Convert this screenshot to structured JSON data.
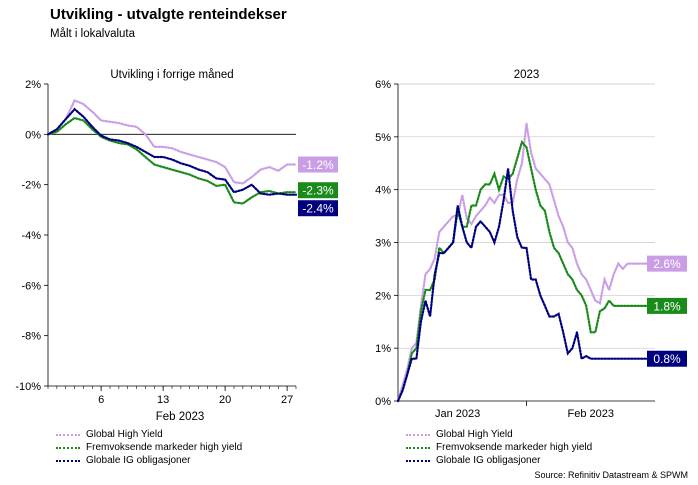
{
  "header": {
    "title": "Utvikling - utvalgte renteindekser",
    "subtitle": "Målt i lokalvaluta",
    "source": "Source: Refinitiv Datastream & SPWM"
  },
  "colors": {
    "global_high_yield": "#c99ee6",
    "emerging_high_yield": "#1a8a1a",
    "global_ig": "#00007f"
  },
  "chart_data": [
    {
      "type": "line",
      "title": "Utvikling i forrige måned",
      "xlabel": "Feb 2023",
      "ylabel": "",
      "x": [
        0,
        1,
        2,
        3,
        4,
        5,
        6,
        7,
        8,
        9,
        10,
        11,
        12,
        13,
        14,
        15,
        16,
        17,
        18,
        19,
        20,
        21,
        22,
        23,
        24,
        25,
        26,
        27,
        28
      ],
      "xlim": [
        0,
        28
      ],
      "xticks": [
        6,
        13,
        20,
        27
      ],
      "xtick_labels": [
        "6",
        "13",
        "20",
        "27"
      ],
      "ylim": [
        -10,
        2
      ],
      "yticks": [
        2,
        0,
        -2,
        -4,
        -6,
        -8,
        -10
      ],
      "ytick_labels": [
        "2%",
        "0%",
        "-2%",
        "-4%",
        "-6%",
        "-8%",
        "-10%"
      ],
      "zero_line": true,
      "series": [
        {
          "name": "Global High Yield",
          "color": "#c99ee6",
          "end_label": "-1.2%",
          "values": [
            0,
            0.2,
            0.6,
            1.35,
            1.2,
            0.9,
            0.55,
            0.5,
            0.45,
            0.35,
            0.3,
            0.0,
            -0.5,
            -0.5,
            -0.55,
            -0.7,
            -0.8,
            -0.9,
            -1.0,
            -1.1,
            -1.3,
            -1.9,
            -1.95,
            -1.7,
            -1.4,
            -1.3,
            -1.45,
            -1.2,
            -1.2
          ]
        },
        {
          "name": "Fremvoksende markeder high yield",
          "color": "#1a8a1a",
          "end_label": "-2.3%",
          "values": [
            0,
            0.1,
            0.4,
            0.65,
            0.55,
            0.2,
            -0.1,
            -0.25,
            -0.35,
            -0.4,
            -0.6,
            -0.9,
            -1.2,
            -1.3,
            -1.4,
            -1.5,
            -1.6,
            -1.75,
            -1.85,
            -2.05,
            -2.0,
            -2.7,
            -2.75,
            -2.5,
            -2.3,
            -2.25,
            -2.35,
            -2.3,
            -2.3
          ]
        },
        {
          "name": "Globale IG obligasjoner",
          "color": "#00007f",
          "end_label": "-2.4%",
          "values": [
            0,
            0.2,
            0.6,
            1.0,
            0.7,
            0.3,
            -0.05,
            -0.2,
            -0.25,
            -0.35,
            -0.5,
            -0.7,
            -0.9,
            -0.9,
            -1.0,
            -1.15,
            -1.25,
            -1.4,
            -1.5,
            -1.75,
            -1.8,
            -2.3,
            -2.2,
            -2.0,
            -2.35,
            -2.4,
            -2.35,
            -2.4,
            -2.4
          ]
        }
      ]
    },
    {
      "type": "line",
      "title": "2023",
      "xlabel": "",
      "ylabel": "",
      "x": [
        0,
        1,
        2,
        3,
        4,
        5,
        6,
        7,
        8,
        9,
        10,
        11,
        12,
        13,
        14,
        15,
        16,
        17,
        18,
        19,
        20,
        21,
        22,
        23,
        24,
        25,
        26,
        27,
        28,
        29,
        30,
        31,
        32,
        33,
        34,
        35,
        36,
        37,
        38,
        39,
        40,
        41,
        42,
        43,
        44,
        45,
        46,
        47,
        48,
        49,
        50,
        51,
        52,
        53,
        54,
        55,
        56
      ],
      "xlim": [
        0,
        56
      ],
      "xtick_labels": [
        "Jan 2023",
        "Feb 2023"
      ],
      "xtick_positions": [
        13,
        42
      ],
      "ylim": [
        0,
        6
      ],
      "yticks": [
        0,
        1,
        2,
        3,
        4,
        5,
        6
      ],
      "ytick_labels": [
        "0%",
        "1%",
        "2%",
        "3%",
        "4%",
        "5%",
        "6%"
      ],
      "series": [
        {
          "name": "Global High Yield",
          "color": "#c99ee6",
          "end_label": "2.6%",
          "values": [
            0,
            0.3,
            0.6,
            1.0,
            1.1,
            1.8,
            2.4,
            2.5,
            2.7,
            3.2,
            3.3,
            3.4,
            3.5,
            3.5,
            3.9,
            3.45,
            3.35,
            3.5,
            3.6,
            3.7,
            3.85,
            3.75,
            3.9,
            3.9,
            3.75,
            3.75,
            4.2,
            4.5,
            5.25,
            4.7,
            4.4,
            4.3,
            4.2,
            4.1,
            3.8,
            3.5,
            3.3,
            3.0,
            2.9,
            2.6,
            2.4,
            2.3,
            2.1,
            1.9,
            1.85,
            2.3,
            2.1,
            2.4,
            2.6,
            2.5,
            2.6,
            2.6,
            2.6,
            2.6,
            2.6,
            2.6,
            2.6
          ]
        },
        {
          "name": "Fremvoksende markeder high yield",
          "color": "#1a8a1a",
          "end_label": "1.8%",
          "values": [
            0,
            0.2,
            0.5,
            0.9,
            1.0,
            1.7,
            2.1,
            2.1,
            2.3,
            2.9,
            2.8,
            2.9,
            3.0,
            3.6,
            3.3,
            3.3,
            3.7,
            3.7,
            4.0,
            4.1,
            4.1,
            4.3,
            4.0,
            4.25,
            4.2,
            4.3,
            4.6,
            4.9,
            4.8,
            4.4,
            4.0,
            3.7,
            3.6,
            3.2,
            2.9,
            2.8,
            2.6,
            2.4,
            2.3,
            2.1,
            2.0,
            1.8,
            1.3,
            1.3,
            1.7,
            1.75,
            1.9,
            1.8,
            1.8,
            1.8,
            1.8,
            1.8,
            1.8,
            1.8,
            1.8,
            1.8,
            1.8
          ]
        },
        {
          "name": "Globale IG obligasjoner",
          "color": "#00007f",
          "end_label": "0.8%",
          "values": [
            0,
            0.2,
            0.5,
            0.8,
            0.8,
            1.5,
            1.9,
            1.6,
            2.4,
            2.8,
            2.8,
            2.9,
            3.0,
            3.7,
            3.3,
            3.0,
            2.9,
            3.3,
            3.4,
            3.3,
            3.2,
            3.0,
            3.3,
            3.8,
            4.4,
            3.6,
            3.1,
            2.9,
            2.9,
            2.3,
            2.3,
            2.0,
            1.8,
            1.6,
            1.6,
            1.65,
            1.3,
            0.9,
            1.0,
            1.3,
            0.8,
            0.85,
            0.8,
            0.8,
            0.8,
            0.8,
            0.8,
            0.8,
            0.8,
            0.8,
            0.8,
            0.8,
            0.8,
            0.8,
            0.8,
            0.8,
            0.8
          ]
        }
      ]
    }
  ]
}
